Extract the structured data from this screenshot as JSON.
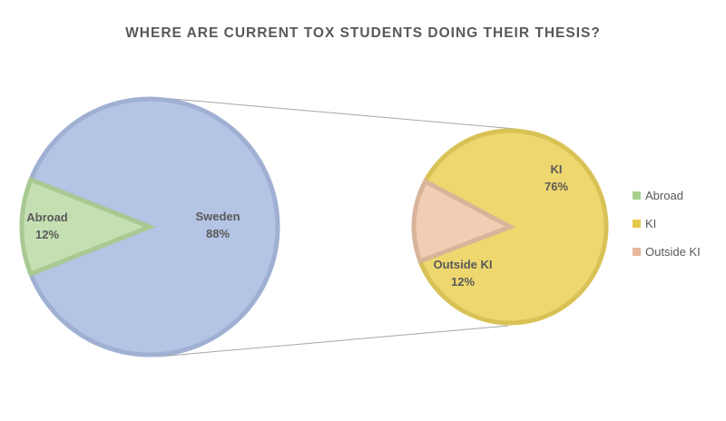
{
  "chart_data": {
    "type": "pie",
    "subtype": "pie-of-pie",
    "title": "WHERE ARE CURRENT TOX STUDENTS DOING THEIR THESIS?",
    "primary": {
      "slices": [
        {
          "name": "Sweden",
          "value": 88,
          "label": "Sweden",
          "pct": "88%",
          "color": "#b4c4e4",
          "stroke": "#9fb0d2"
        },
        {
          "name": "Abroad",
          "value": 12,
          "label": "Abroad",
          "pct": "12%",
          "color": "#c6dfb2",
          "stroke": "#a9c993"
        }
      ]
    },
    "secondary": {
      "slices": [
        {
          "name": "KI",
          "value": 76,
          "label": "KI",
          "pct": "76%",
          "color": "#eed76e",
          "stroke": "#d9c255"
        },
        {
          "name": "Outside KI",
          "value": 12,
          "label": "Outside KI",
          "pct": "12%",
          "color": "#f3cdb3",
          "stroke": "#d7b49a"
        }
      ]
    },
    "legend": {
      "position": "right",
      "entries": [
        {
          "label": "Abroad",
          "color": "#a9d18e"
        },
        {
          "label": "KI",
          "color": "#e6c84a"
        },
        {
          "label": "Outside KI",
          "color": "#e7b89c"
        }
      ]
    },
    "connector_color": "#a6a6a6"
  }
}
